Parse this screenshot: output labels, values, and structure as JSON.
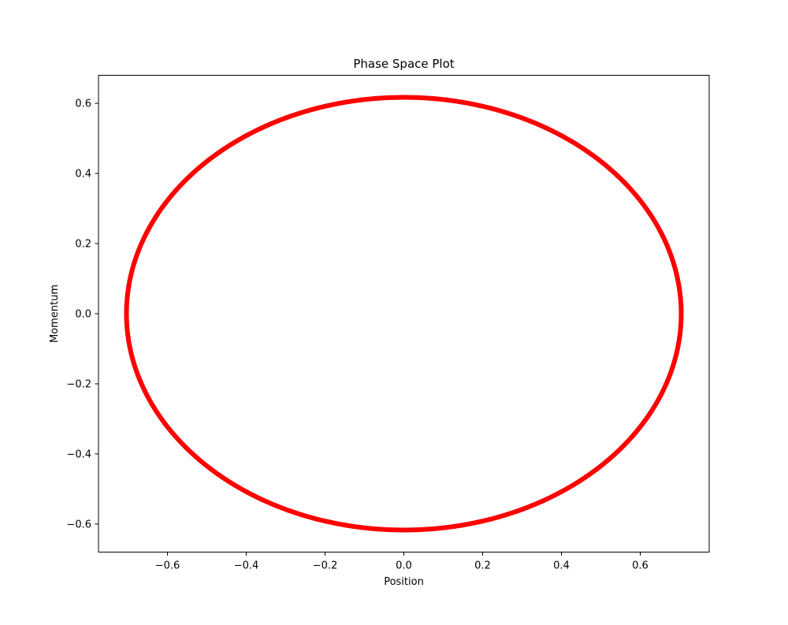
{
  "chart_data": {
    "type": "scatter",
    "title": "Phase Space Plot",
    "xlabel": "Position",
    "ylabel": "Momentum",
    "xlim": [
      -0.775,
      0.775
    ],
    "ylim": [
      -0.68,
      0.68
    ],
    "xticks": [
      -0.6,
      -0.4,
      -0.2,
      0.0,
      0.2,
      0.4,
      0.6
    ],
    "yticks": [
      -0.6,
      -0.4,
      -0.2,
      0.0,
      0.2,
      0.4,
      0.6
    ],
    "xtick_labels": [
      "−0.6",
      "−0.4",
      "−0.2",
      "0.0",
      "0.2",
      "0.4",
      "0.6"
    ],
    "ytick_labels": [
      "−0.6",
      "−0.4",
      "−0.2",
      "0.0",
      "0.2",
      "0.4",
      "0.6"
    ],
    "grid": false,
    "series": [
      {
        "color": "#ff0000",
        "shape": "closed elliptical orbit",
        "center": [
          0.0,
          0.0
        ],
        "x_amplitude": 0.704,
        "y_amplitude": 0.617
      }
    ]
  }
}
